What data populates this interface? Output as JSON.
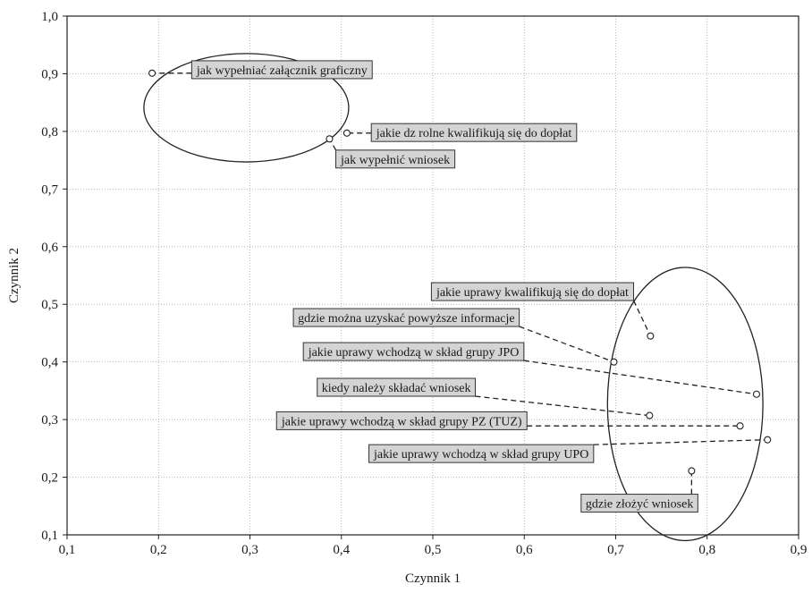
{
  "chart_data": {
    "type": "scatter",
    "xlabel": "Czynnik 1",
    "ylabel": "Czynnik 2",
    "xlim": [
      0.1,
      0.9
    ],
    "ylim": [
      0.1,
      1.0
    ],
    "x_ticks": [
      "0,1",
      "0,2",
      "0,3",
      "0,4",
      "0,5",
      "0,6",
      "0,7",
      "0,8",
      "0,9"
    ],
    "y_ticks": [
      "0,1",
      "0,2",
      "0,3",
      "0,4",
      "0,5",
      "0,6",
      "0,7",
      "0,8",
      "0,9",
      "1,0"
    ],
    "grid": true,
    "points": [
      {
        "x": 0.193,
        "y": 0.901,
        "label": "jak wypełniać załącznik graficzny",
        "lx": 0.335,
        "ly": 0.907
      },
      {
        "x": 0.406,
        "y": 0.797,
        "label": "jakie dz  rolne kwalifikują się do dopłat",
        "lx": 0.545,
        "ly": 0.798
      },
      {
        "x": 0.387,
        "y": 0.787,
        "label": "jak wypełnić wniosek",
        "lx": 0.459,
        "ly": 0.752
      },
      {
        "x": 0.738,
        "y": 0.445,
        "label": "jakie uprawy kwalifikują się do dopłat",
        "lx": 0.609,
        "ly": 0.522
      },
      {
        "x": 0.698,
        "y": 0.4,
        "label": "gdzie można uzyskać powyższe informacje",
        "lx": 0.471,
        "ly": 0.477
      },
      {
        "x": 0.854,
        "y": 0.344,
        "label": "jakie uprawy wchodzą w skład grupy JPO",
        "lx": 0.479,
        "ly": 0.418
      },
      {
        "x": 0.737,
        "y": 0.307,
        "label": "kiedy należy składać wniosek",
        "lx": 0.46,
        "ly": 0.356
      },
      {
        "x": 0.836,
        "y": 0.289,
        "label": "jakie uprawy wchodzą w skład grupy PZ (TUZ)",
        "lx": 0.466,
        "ly": 0.298
      },
      {
        "x": 0.866,
        "y": 0.265,
        "label": "jakie uprawy wchodzą w skład grupy UPO",
        "lx": 0.553,
        "ly": 0.241
      },
      {
        "x": 0.783,
        "y": 0.211,
        "label": "gdzie złożyć wniosek",
        "lx": 0.726,
        "ly": 0.155
      }
    ],
    "clusters": [
      {
        "cx": 0.296,
        "cy": 0.841,
        "rx": 0.112,
        "ry": 0.094
      },
      {
        "cx": 0.776,
        "cy": 0.327,
        "rx": 0.085,
        "ry": 0.237
      }
    ]
  }
}
